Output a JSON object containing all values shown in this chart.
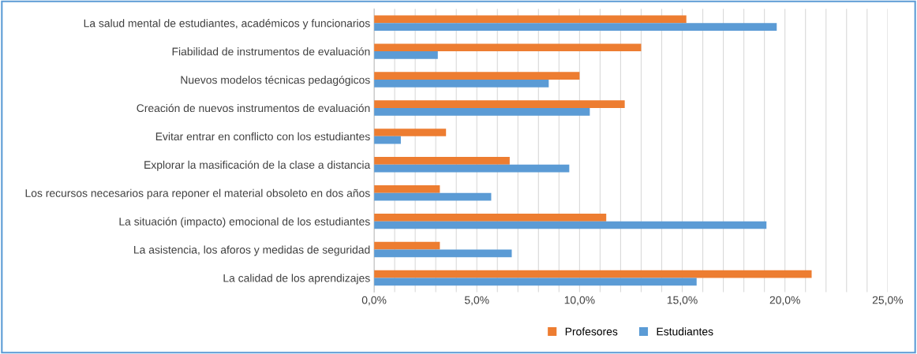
{
  "chart_data": {
    "type": "bar",
    "orientation": "horizontal",
    "categories": [
      "La salud mental de estudiantes, académicos y funcionarios",
      "Fiabilidad de instrumentos de evaluación",
      "Nuevos modelos técnicas pedagógicos",
      "Creación de nuevos instrumentos de evaluación",
      "Evitar entrar en conflicto con los estudiantes",
      "Explorar la masificación de la clase a distancia",
      "Los recursos necesarios para reponer el material obsoleto en dos años",
      "La situación (impacto) emocional de los estudiantes",
      "La asistencia, los aforos y medidas de seguridad",
      "La calidad de los aprendizajes"
    ],
    "series": [
      {
        "name": "Profesores",
        "color": "#ed7d31",
        "values": [
          15.2,
          13.0,
          10.0,
          12.2,
          3.5,
          6.6,
          3.2,
          11.3,
          3.2,
          21.3
        ]
      },
      {
        "name": "Estudiantes",
        "color": "#5b9bd5",
        "values": [
          19.6,
          3.1,
          8.5,
          10.5,
          1.3,
          9.5,
          5.7,
          19.1,
          6.7,
          15.7
        ]
      }
    ],
    "xlim": [
      0,
      25
    ],
    "xticks": [
      {
        "value": 0,
        "label": "0,0%"
      },
      {
        "value": 1,
        "label": null
      },
      {
        "value": 2,
        "label": null
      },
      {
        "value": 3,
        "label": null
      },
      {
        "value": 4,
        "label": null
      },
      {
        "value": 5,
        "label": "5,0%"
      },
      {
        "value": 6,
        "label": null
      },
      {
        "value": 7,
        "label": null
      },
      {
        "value": 8,
        "label": null
      },
      {
        "value": 9,
        "label": null
      },
      {
        "value": 10,
        "label": "10,0%"
      },
      {
        "value": 11,
        "label": null
      },
      {
        "value": 12,
        "label": null
      },
      {
        "value": 13,
        "label": null
      },
      {
        "value": 14,
        "label": null
      },
      {
        "value": 15,
        "label": "15,0%"
      },
      {
        "value": 16,
        "label": null
      },
      {
        "value": 17,
        "label": null
      },
      {
        "value": 18,
        "label": null
      },
      {
        "value": 19,
        "label": null
      },
      {
        "value": 20,
        "label": "20,0%"
      },
      {
        "value": 21,
        "label": null
      },
      {
        "value": 22,
        "label": null
      },
      {
        "value": 23,
        "label": null
      },
      {
        "value": 24,
        "label": null
      },
      {
        "value": 25,
        "label": "25,0%"
      }
    ],
    "grid": "x",
    "legend": "bottom"
  }
}
